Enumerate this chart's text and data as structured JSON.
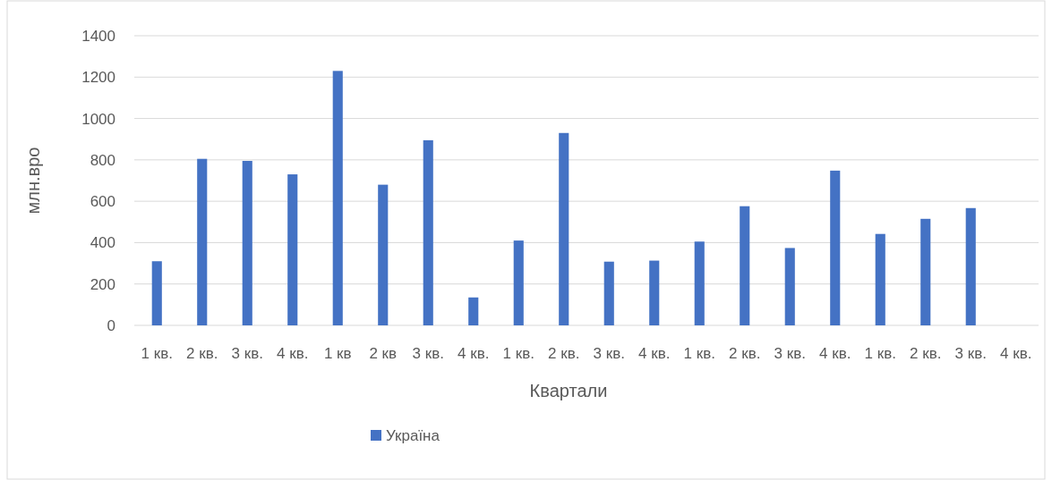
{
  "chart_data": {
    "type": "bar",
    "xlabel": "Квартали",
    "ylabel": "млн.вро",
    "categories": [
      "1 кв.",
      "2 кв.",
      "3 кв.",
      "4 кв.",
      "1 кв",
      "2 кв",
      "3 кв.",
      "4 кв.",
      "1 кв.",
      "2 кв.",
      "3 кв.",
      "4 кв.",
      "1 кв.",
      "2 кв.",
      "3 кв.",
      "4 кв.",
      "1 кв.",
      "2 кв.",
      "3 кв.",
      "4 кв."
    ],
    "series": [
      {
        "name": "Україна",
        "color": "#4472c4",
        "values": [
          310,
          805,
          795,
          730,
          1230,
          680,
          895,
          135,
          410,
          930,
          308,
          313,
          405,
          576,
          374,
          748,
          442,
          515,
          567,
          null
        ]
      }
    ],
    "ylim": [
      0,
      1400
    ],
    "yticks": [
      0,
      200,
      400,
      600,
      800,
      1000,
      1200,
      1400
    ],
    "grid": "y",
    "legend": "bottom"
  }
}
